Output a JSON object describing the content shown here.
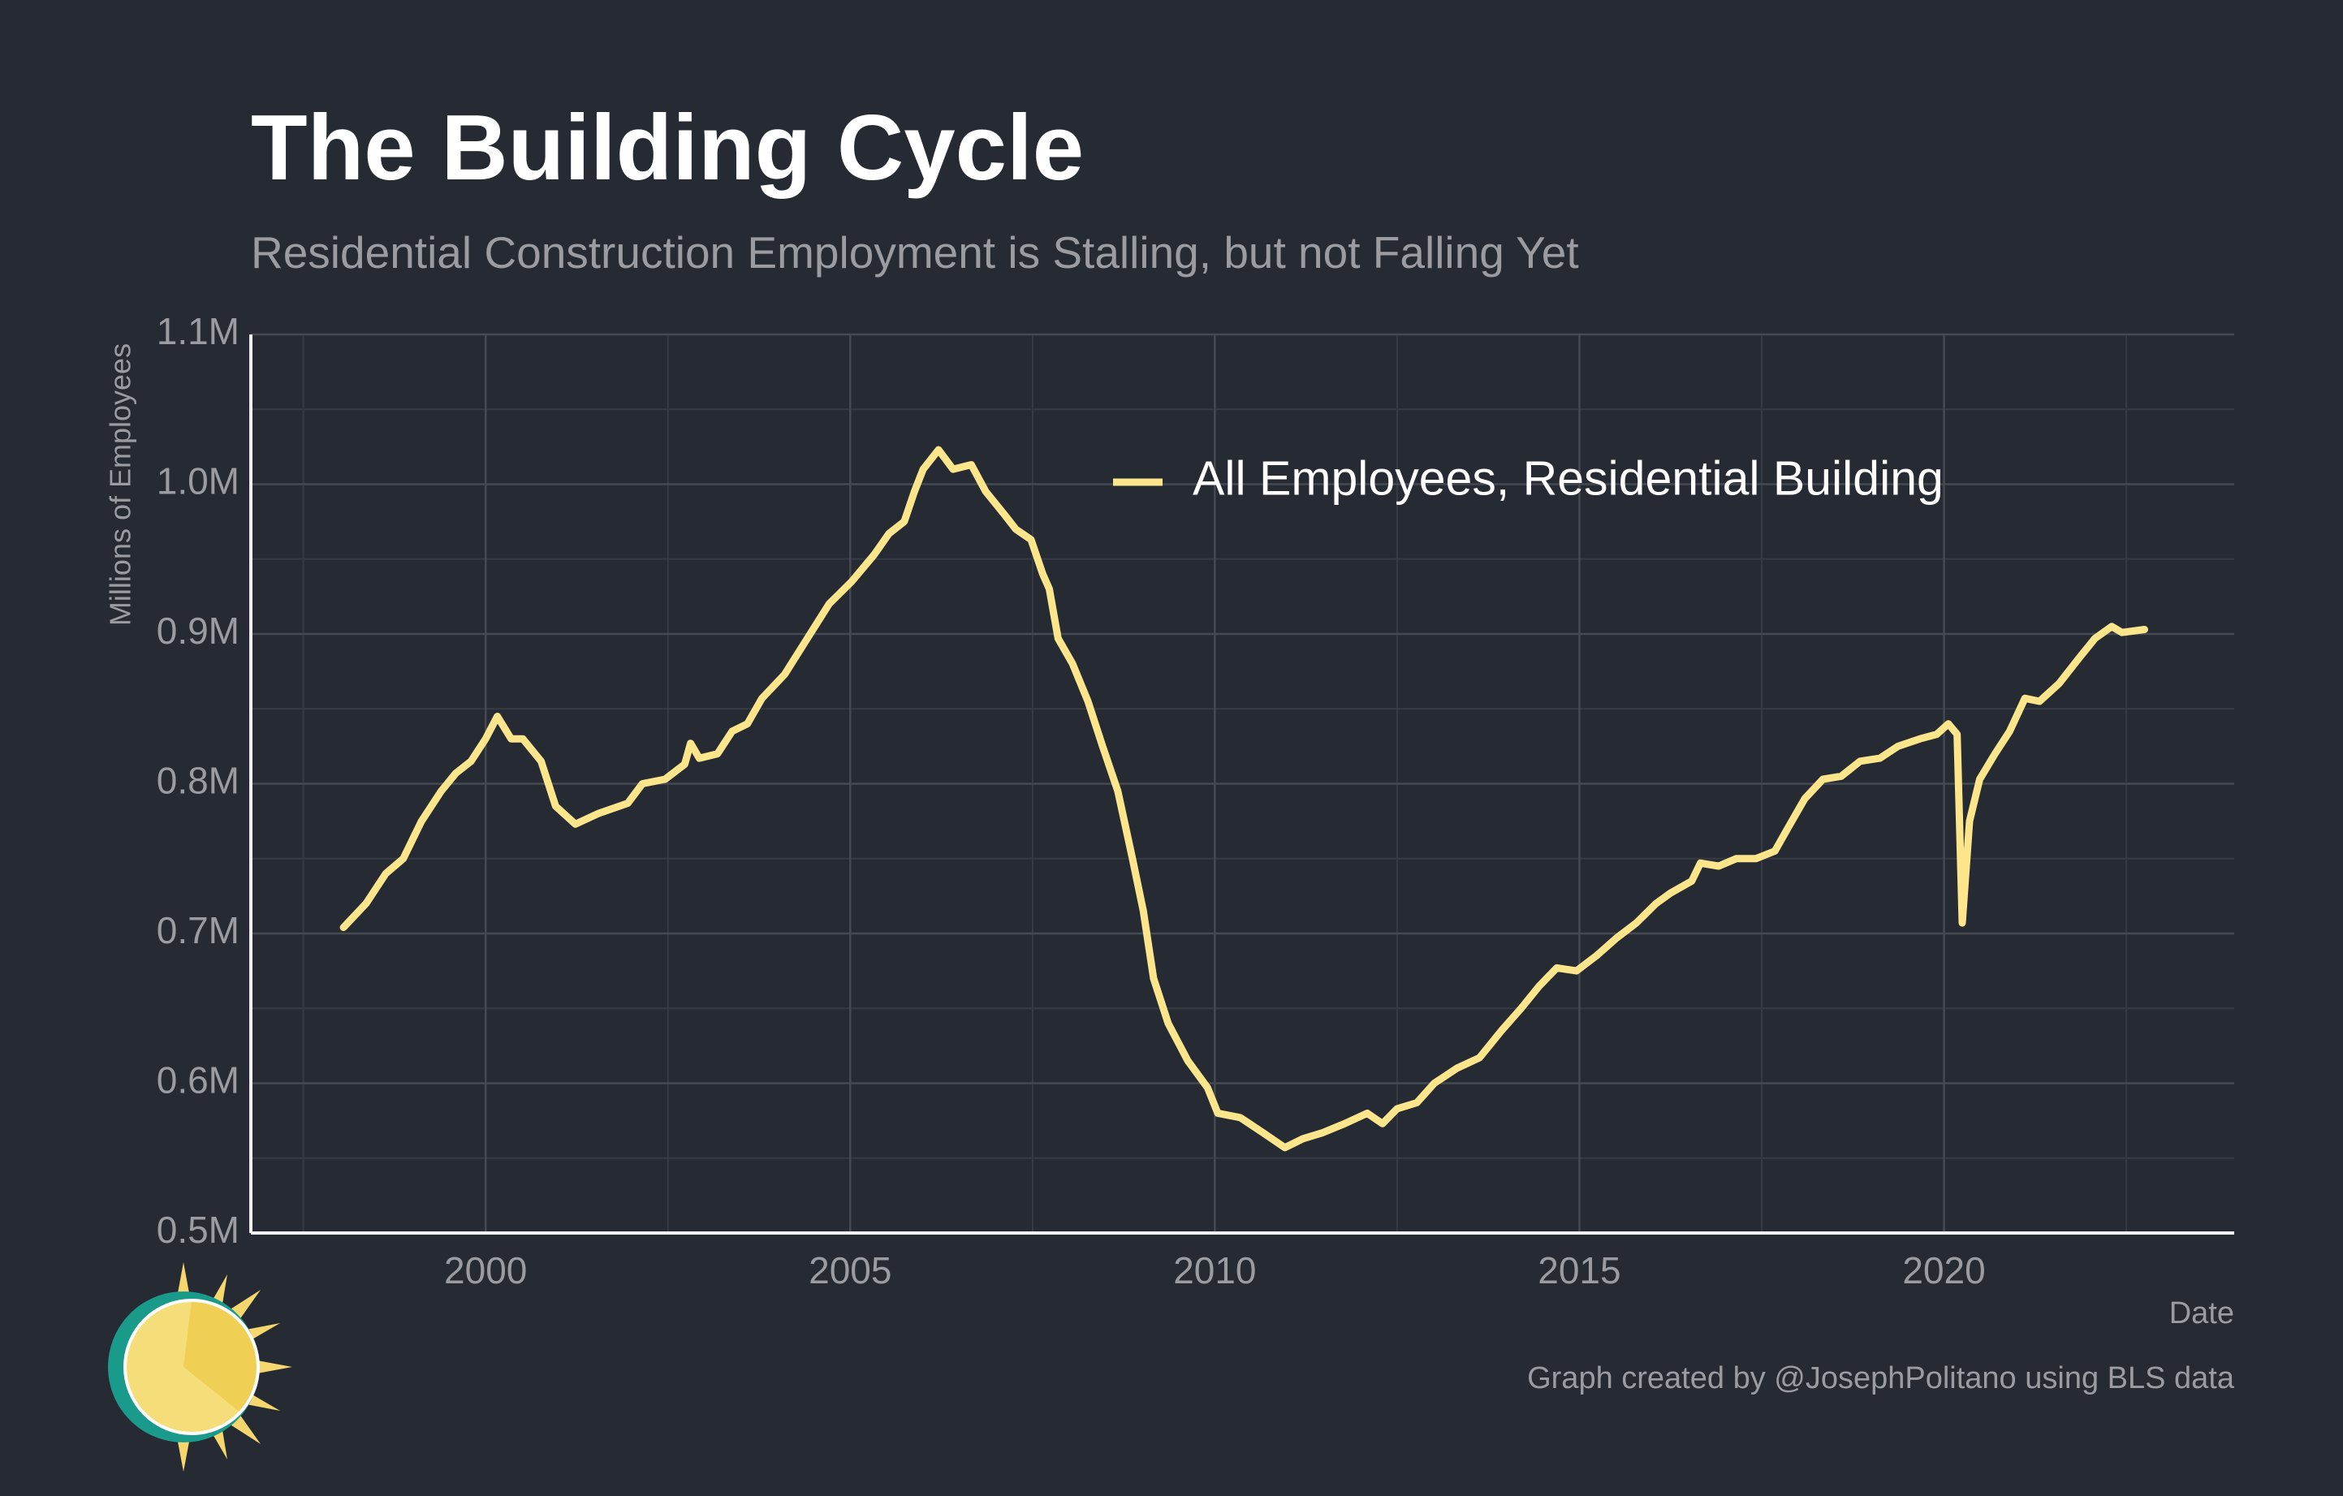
{
  "chart_data": {
    "type": "line",
    "title": "The Building Cycle",
    "subtitle": "Residential Construction Employment is Stalling, but not Falling Yet",
    "x_label": "Date",
    "y_label": "Millions of Employees",
    "footer": "Graph created by @JosephPolitano using BLS data",
    "legend": "top-right",
    "grid": true,
    "xlim": [
      1996.78,
      2023.98
    ],
    "ylim": [
      0.5,
      1.1
    ],
    "xticks": [
      2000,
      2005,
      2010,
      2015,
      2020
    ],
    "yticks": [
      {
        "value": 0.5,
        "label": "0.5M"
      },
      {
        "value": 0.6,
        "label": "0.6M"
      },
      {
        "value": 0.7,
        "label": "0.7M"
      },
      {
        "value": 0.8,
        "label": "0.8M"
      },
      {
        "value": 0.9,
        "label": "0.9M"
      },
      {
        "value": 1.0,
        "label": "1.0M"
      },
      {
        "value": 1.1,
        "label": "1.1M"
      }
    ],
    "x": [
      1998.05,
      1998.36,
      1998.63,
      1998.87,
      1999.12,
      1999.39,
      1999.59,
      1999.8,
      2000.0,
      2000.16,
      2000.35,
      2000.51,
      2000.76,
      2000.96,
      2001.23,
      2001.54,
      2001.95,
      2002.15,
      2002.46,
      2002.73,
      2002.81,
      2002.93,
      2003.18,
      2003.38,
      2003.59,
      2003.79,
      2004.1,
      2004.36,
      2004.71,
      2005.02,
      2005.33,
      2005.53,
      2005.74,
      2005.88,
      2006.0,
      2006.21,
      2006.41,
      2006.66,
      2006.86,
      2007.11,
      2007.27,
      2007.48,
      2007.64,
      2007.73,
      2007.85,
      2008.05,
      2008.26,
      2008.46,
      2008.67,
      2008.87,
      2009.02,
      2009.16,
      2009.36,
      2009.63,
      2009.9,
      2010.04,
      2010.35,
      2010.66,
      2010.96,
      2011.21,
      2011.48,
      2011.78,
      2012.09,
      2012.3,
      2012.5,
      2012.77,
      2013.01,
      2013.32,
      2013.63,
      2013.93,
      2014.2,
      2014.45,
      2014.69,
      2014.96,
      2015.23,
      2015.51,
      2015.78,
      2016.05,
      2016.25,
      2016.54,
      2016.66,
      2016.91,
      2017.15,
      2017.42,
      2017.68,
      2017.89,
      2018.09,
      2018.34,
      2018.59,
      2018.85,
      2019.12,
      2019.37,
      2019.67,
      2019.9,
      2020.06,
      2020.18,
      2020.25,
      2020.35,
      2020.49,
      2020.7,
      2020.9,
      2021.11,
      2021.31,
      2021.58,
      2021.87,
      2022.07,
      2022.3,
      2022.44,
      2022.75
    ],
    "series": [
      {
        "name": "All Employees, Residential Building",
        "color": "#fce58a",
        "values": [
          0.704,
          0.72,
          0.74,
          0.75,
          0.775,
          0.795,
          0.807,
          0.815,
          0.83,
          0.845,
          0.83,
          0.83,
          0.815,
          0.785,
          0.773,
          0.78,
          0.787,
          0.8,
          0.803,
          0.813,
          0.827,
          0.817,
          0.82,
          0.835,
          0.84,
          0.857,
          0.873,
          0.893,
          0.92,
          0.935,
          0.953,
          0.967,
          0.975,
          0.995,
          1.01,
          1.023,
          1.01,
          1.013,
          0.995,
          0.98,
          0.97,
          0.963,
          0.94,
          0.93,
          0.897,
          0.88,
          0.855,
          0.825,
          0.795,
          0.75,
          0.715,
          0.67,
          0.64,
          0.615,
          0.597,
          0.58,
          0.577,
          0.567,
          0.557,
          0.563,
          0.567,
          0.573,
          0.58,
          0.573,
          0.583,
          0.587,
          0.6,
          0.61,
          0.617,
          0.635,
          0.65,
          0.665,
          0.677,
          0.675,
          0.685,
          0.697,
          0.707,
          0.72,
          0.727,
          0.735,
          0.747,
          0.745,
          0.75,
          0.75,
          0.755,
          0.773,
          0.79,
          0.803,
          0.805,
          0.815,
          0.817,
          0.825,
          0.83,
          0.833,
          0.84,
          0.833,
          0.707,
          0.775,
          0.803,
          0.82,
          0.835,
          0.857,
          0.855,
          0.867,
          0.885,
          0.897,
          0.905,
          0.901,
          0.903
        ]
      }
    ]
  }
}
